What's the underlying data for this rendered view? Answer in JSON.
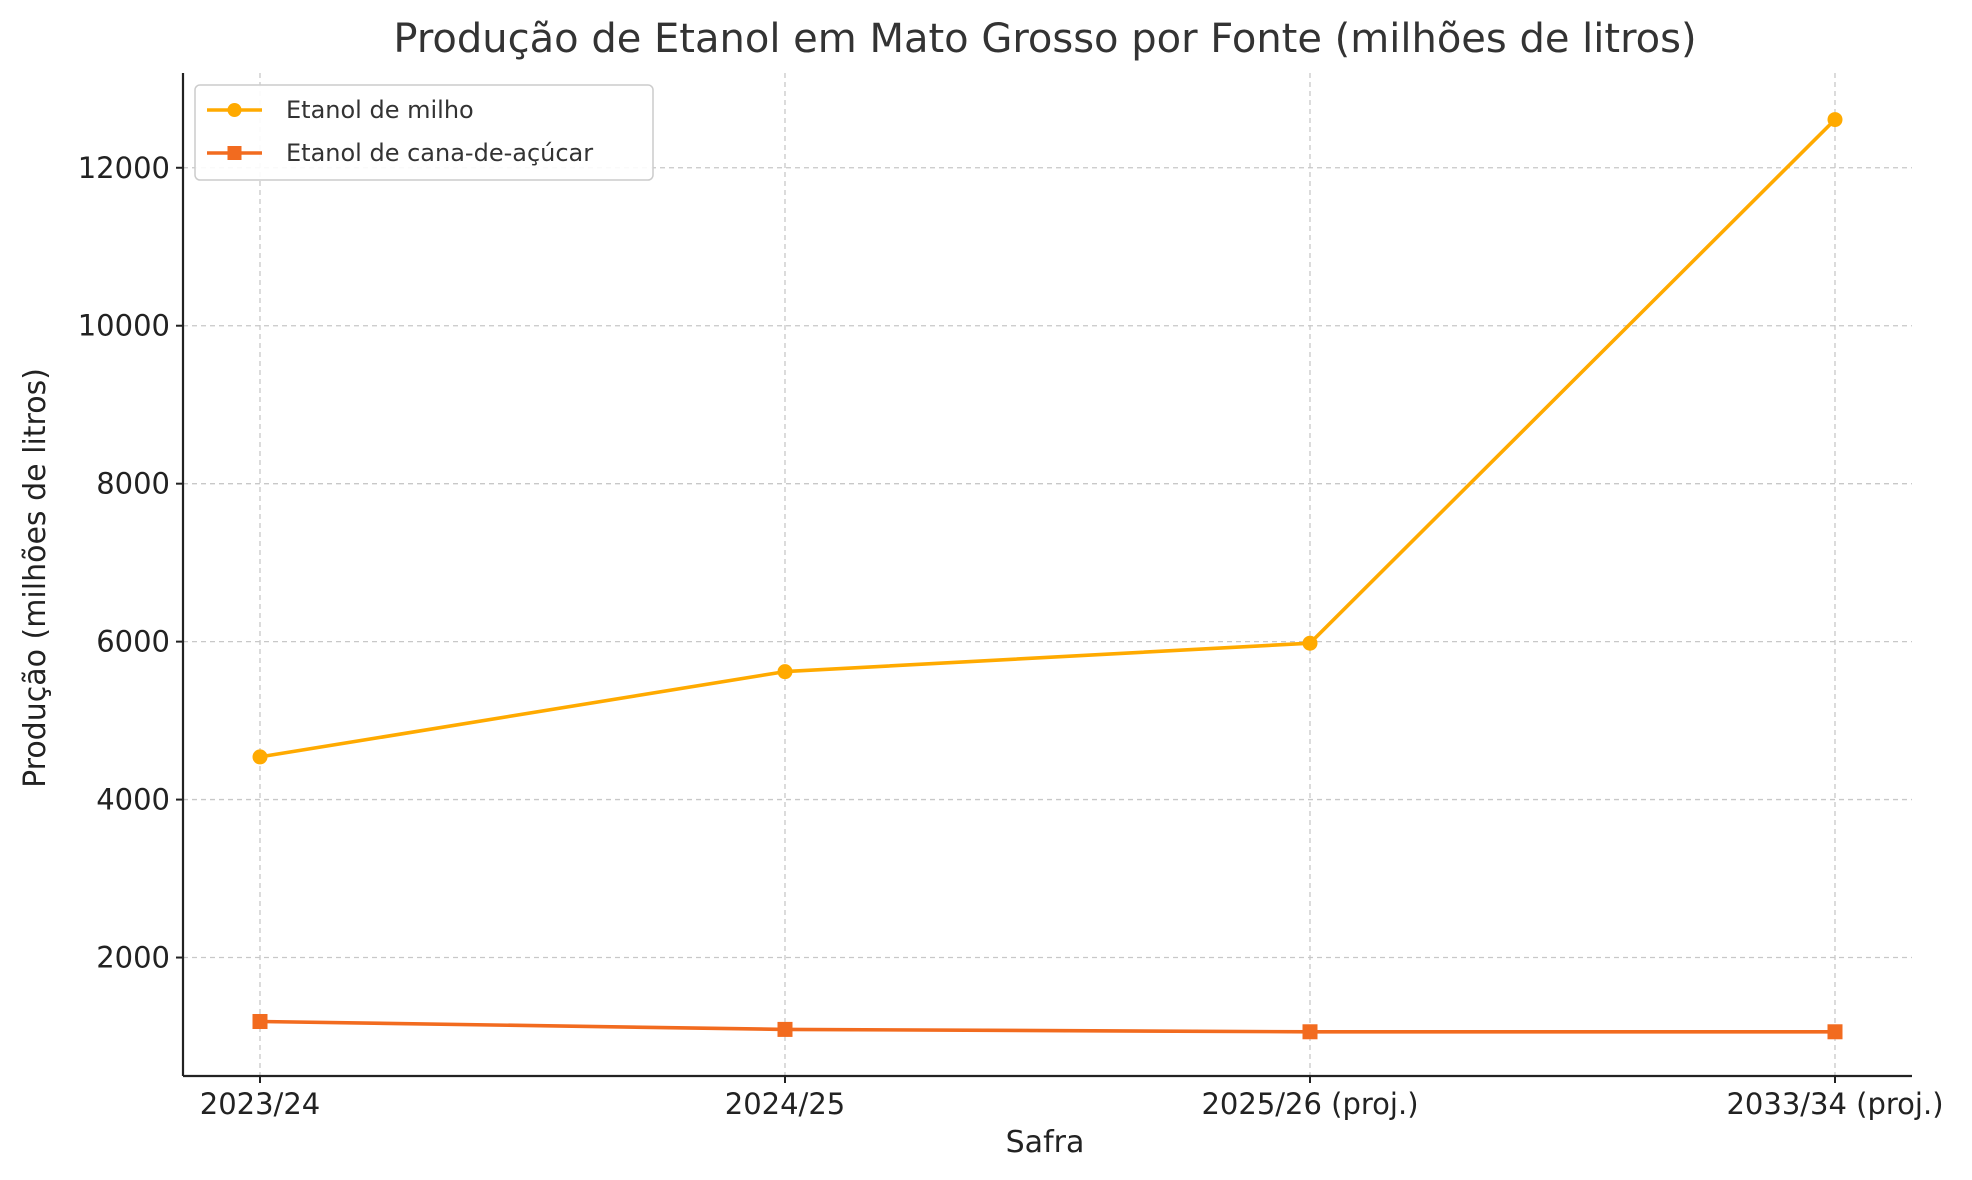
{
  "chart_data": {
    "type": "line",
    "title": "Produção de Etanol em Mato Grosso por Fonte (milhões de litros)",
    "xlabel": "Safra",
    "ylabel": "Produção (milhões de litros)",
    "categories": [
      "2023/24",
      "2024/25",
      "2025/26 (proj.)",
      "2033/34 (proj.)"
    ],
    "ylim": [
      500,
      13200
    ],
    "yticks": [
      2000,
      4000,
      6000,
      8000,
      10000,
      12000
    ],
    "grid": true,
    "legend_position": "top-left",
    "series": [
      {
        "name": "Etanol de milho",
        "values": [
          4540,
          5620,
          5980,
          12610
        ],
        "color": "#FFAA00",
        "marker": "circle"
      },
      {
        "name": "Etanol de cana-de-açúcar",
        "values": [
          1190,
          1090,
          1060,
          1060
        ],
        "color": "#F26B1F",
        "marker": "square"
      }
    ]
  }
}
